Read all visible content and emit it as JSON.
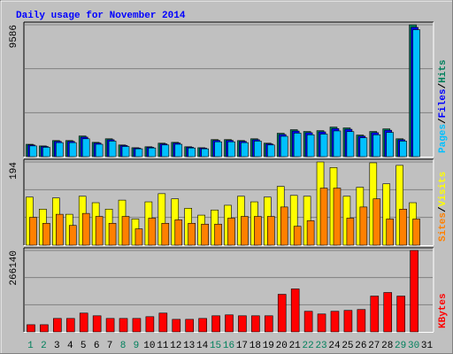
{
  "title": "Daily usage for November 2014",
  "categories": [
    "1",
    "2",
    "3",
    "4",
    "5",
    "6",
    "7",
    "8",
    "9",
    "10",
    "11",
    "12",
    "13",
    "14",
    "15",
    "16",
    "17",
    "18",
    "19",
    "20",
    "21",
    "22",
    "23",
    "24",
    "25",
    "26",
    "27",
    "28",
    "29",
    "30",
    "31"
  ],
  "category_colors": [
    "#00805c",
    "#00805c",
    "#000000",
    "#000000",
    "#000000",
    "#000000",
    "#000000",
    "#00805c",
    "#00805c",
    "#000000",
    "#000000",
    "#000000",
    "#000000",
    "#000000",
    "#00805c",
    "#00805c",
    "#000000",
    "#000000",
    "#000000",
    "#000000",
    "#000000",
    "#00805c",
    "#00805c",
    "#000000",
    "#000000",
    "#000000",
    "#000000",
    "#000000",
    "#00805c",
    "#00805c",
    "#000000"
  ],
  "chart_data": [
    {
      "type": "bar",
      "ylim": [
        0,
        9586
      ],
      "yticks": [
        9586
      ],
      "legend_separator": "/",
      "series": [
        {
          "name": "Hits",
          "color": "#00805c",
          "values": [
            900,
            780,
            1170,
            1170,
            1500,
            1040,
            1300,
            850,
            650,
            720,
            980,
            1040,
            720,
            650,
            1240,
            1240,
            1170,
            1300,
            980,
            1700,
            1960,
            1830,
            1890,
            2150,
            2090,
            1570,
            1830,
            2020,
            1300,
            9586,
            null
          ]
        },
        {
          "name": "Files",
          "color": "#0000ff",
          "values": [
            850,
            740,
            1110,
            1110,
            1420,
            990,
            1230,
            810,
            620,
            680,
            930,
            990,
            680,
            620,
            1180,
            1180,
            1110,
            1230,
            930,
            1610,
            1860,
            1740,
            1800,
            2040,
            1990,
            1490,
            1740,
            1920,
            1230,
            9400,
            null
          ]
        },
        {
          "name": "Pages",
          "color": "#00c0ff",
          "values": [
            780,
            680,
            1020,
            1020,
            1300,
            900,
            1130,
            740,
            570,
            630,
            850,
            900,
            630,
            570,
            1080,
            1080,
            1020,
            1130,
            850,
            1480,
            1710,
            1590,
            1640,
            1870,
            1820,
            1370,
            1590,
            1760,
            1130,
            9230,
            null
          ]
        }
      ]
    },
    {
      "type": "bar",
      "ylim": [
        0,
        194
      ],
      "yticks": [
        194
      ],
      "legend_separator": "/",
      "series": [
        {
          "name": "Visits",
          "color": "#ffff00",
          "values": [
            112,
            84,
            110,
            72,
            114,
            99,
            84,
            105,
            61,
            101,
            120,
            108,
            86,
            70,
            82,
            93,
            114,
            101,
            112,
            137,
            116,
            114,
            194,
            181,
            114,
            135,
            192,
            143,
            186,
            99,
            null
          ]
        },
        {
          "name": "Sites",
          "color": "#ff8000",
          "values": [
            65,
            51,
            72,
            46,
            74,
            67,
            51,
            67,
            38,
            63,
            51,
            59,
            51,
            49,
            49,
            63,
            67,
            67,
            67,
            89,
            44,
            57,
            133,
            133,
            63,
            89,
            108,
            61,
            84,
            61,
            null
          ]
        }
      ]
    },
    {
      "type": "bar",
      "ylim": [
        0,
        266140
      ],
      "yticks": [
        266140
      ],
      "legend_separator": "/",
      "series": [
        {
          "name": "KBytes",
          "color": "#ff0000",
          "values": [
            23400,
            23400,
            43900,
            43900,
            61400,
            52600,
            43900,
            43900,
            43900,
            49700,
            61400,
            40900,
            40900,
            43900,
            52600,
            55600,
            52600,
            52600,
            52600,
            122800,
            140400,
            67300,
            58500,
            67300,
            70200,
            73100,
            117000,
            128700,
            117000,
            266140,
            null
          ]
        }
      ]
    }
  ]
}
